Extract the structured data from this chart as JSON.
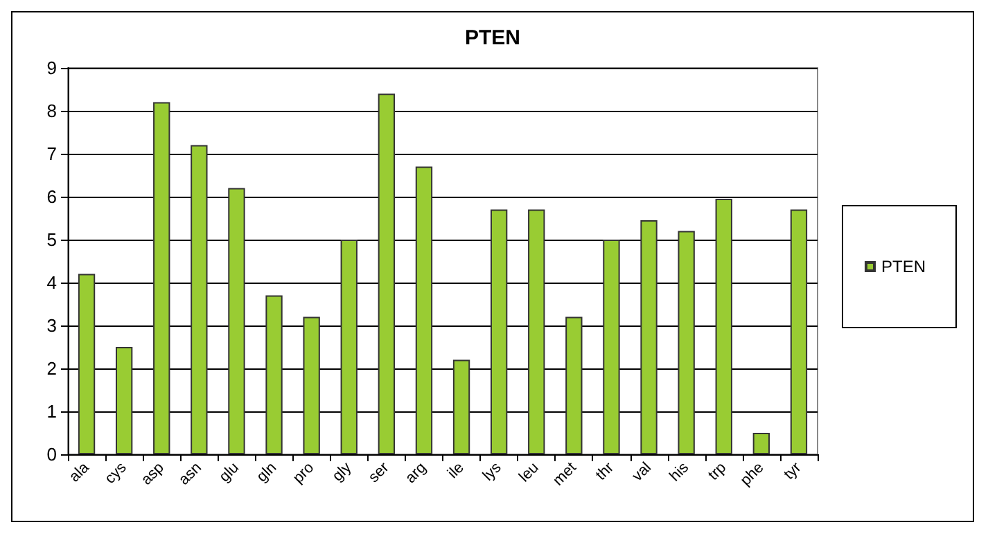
{
  "chart_data": {
    "type": "bar",
    "title": "PTEN",
    "categories": [
      "ala",
      "cys",
      "asp",
      "asn",
      "glu",
      "gln",
      "pro",
      "gly",
      "ser",
      "arg",
      "ile",
      "lys",
      "leu",
      "met",
      "thr",
      "val",
      "his",
      "trp",
      "phe",
      "tyr"
    ],
    "series": [
      {
        "name": "PTEN",
        "color": "#99cc33",
        "values": [
          4.2,
          2.5,
          8.2,
          7.2,
          6.2,
          3.7,
          3.2,
          5.0,
          8.4,
          6.7,
          2.2,
          5.7,
          5.7,
          3.2,
          5.0,
          5.45,
          5.2,
          5.95,
          0.5,
          5.7
        ]
      }
    ],
    "ylim": [
      0,
      9
    ],
    "yticks": [
      0,
      1,
      2,
      3,
      4,
      5,
      6,
      7,
      8,
      9
    ],
    "grid": "y",
    "legend": "right"
  }
}
